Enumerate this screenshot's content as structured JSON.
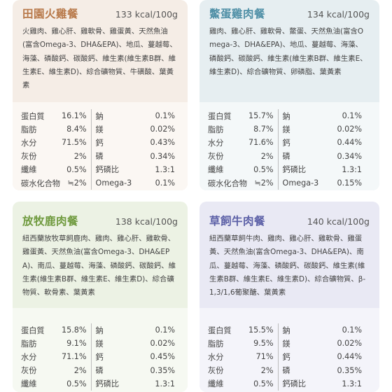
{
  "cards": [
    {
      "title": "田園火雞餐",
      "kcal": "133 kcal/100g",
      "title_color": "#b8794a",
      "ingredients": "火雞肉、雞心肝、雞軟骨、雞蛋黃、天然魚油(富含Omega-3、DHA&EPA)、地瓜、蔓越莓、海藻、磷酸鈣、碳酸鈣、維生素(維生素B群、維生素E、維生素D)、綜合礦物質、牛磺酸、葉黃素",
      "nutrients": [
        [
          "蛋白質",
          "16.1%",
          "鈉",
          "0.1%"
        ],
        [
          "脂肪",
          "8.4%",
          "鎂",
          "0.02%"
        ],
        [
          "水分",
          "71.5%",
          "鈣",
          "0.43%"
        ],
        [
          "灰份",
          "2%",
          "磷",
          "0.34%"
        ],
        [
          "纖維",
          "0.5%",
          "鈣磷比",
          "1.3:1"
        ],
        [
          "碳水化合物",
          "≒2%",
          "Omega-3",
          "0.1%"
        ]
      ]
    },
    {
      "title": "鱉蛋雞肉餐",
      "kcal": "134 kcal/100g",
      "title_color": "#4f8fa6",
      "ingredients": "雞肉、雞心肝、雞軟骨、鱉蛋、天然魚油(富含Omega-3、DHA&EPA)、地瓜、蔓越莓、海藻、磷酸鈣、碳酸鈣、維生素(維生素B群、維生素E、維生素D)、綜合礦物質、卵磷脂、葉黃素",
      "nutrients": [
        [
          "蛋白質",
          "15.7%",
          "鈉",
          "0.1%"
        ],
        [
          "脂肪",
          "8.7%",
          "鎂",
          "0.02%"
        ],
        [
          "水分",
          "71.6%",
          "鈣",
          "0.44%"
        ],
        [
          "灰份",
          "2%",
          "磷",
          "0.34%"
        ],
        [
          "纖維",
          "0.5%",
          "鈣磷比",
          "1.3:1"
        ],
        [
          "碳水化合物",
          "≒2%",
          "Omega-3",
          "0.15%"
        ]
      ]
    },
    {
      "title": "放牧鹿肉餐",
      "kcal": "138 kcal/100g",
      "title_color": "#6f9a3e",
      "ingredients": "紐西蘭放牧草飼鹿肉、雞肉、雞心肝、雞軟骨、雞蛋黃、天然魚油(富含Omega-3、DHA&EPA)、南瓜、蔓越莓、海藻、磷酸鈣、碳酸鈣、維生素(維生素B群、維生素E、維生素D)、綜合礦物質、軟骨素、葉黃素",
      "nutrients": [
        [
          "蛋白質",
          "15.8%",
          "鈉",
          "0.1%"
        ],
        [
          "脂肪",
          "9.1%",
          "鎂",
          "0.02%"
        ],
        [
          "水分",
          "71.1%",
          "鈣",
          "0.45%"
        ],
        [
          "灰份",
          "2%",
          "磷",
          "0.35%"
        ],
        [
          "纖維",
          "0.5%",
          "鈣磷比",
          "1.3:1"
        ]
      ]
    },
    {
      "title": "草飼牛肉餐",
      "kcal": "140 kcal/100g",
      "title_color": "#5b5fa6",
      "ingredients": "紐西蘭草飼牛肉、雞肉、雞心肝、雞軟骨、雞蛋黃、天然魚油(富含Omega-3、DHA&EPA)、南瓜、蔓越莓、海藻、磷酸鈣、碳酸鈣、維生素(維生素B群、維生素E、維生素D)、綜合礦物質、β-1,3/1,6葡聚醣、葉黃素",
      "nutrients": [
        [
          "蛋白質",
          "15.5%",
          "鈉",
          "0.1%"
        ],
        [
          "脂肪",
          "9.5%",
          "鎂",
          "0.02%"
        ],
        [
          "水分",
          "71%",
          "鈣",
          "0.44%"
        ],
        [
          "灰份",
          "2%",
          "磷",
          "0.35%"
        ],
        [
          "纖維",
          "0.5%",
          "鈣磷比",
          "1.3:1"
        ]
      ]
    }
  ]
}
